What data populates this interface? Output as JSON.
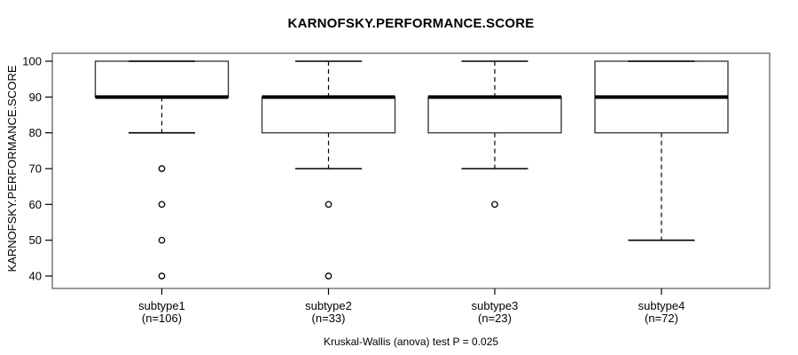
{
  "chart_data": {
    "type": "boxplot",
    "title": "KARNOFSKY.PERFORMANCE.SCORE",
    "ylabel": "KARNOFSKY.PERFORMANCE.SCORE",
    "xlabel": "",
    "ylim": [
      40,
      100
    ],
    "yticks": [
      100,
      90,
      80,
      70,
      60,
      50,
      40
    ],
    "grid": false,
    "legend_position": "none",
    "categories": [
      "subtype1",
      "subtype2",
      "subtype3",
      "subtype4"
    ],
    "category_sublabels": [
      "(n=106)",
      "(n=33)",
      "(n=23)",
      "(n=72)"
    ],
    "series": [
      {
        "name": "subtype1",
        "n": 106,
        "whisker_low": 80,
        "q1": 90,
        "median": 90,
        "q3": 100,
        "whisker_high": 100,
        "outliers": [
          70,
          60,
          50,
          40
        ]
      },
      {
        "name": "subtype2",
        "n": 33,
        "whisker_low": 70,
        "q1": 80,
        "median": 90,
        "q3": 90,
        "whisker_high": 100,
        "outliers": [
          60,
          40
        ]
      },
      {
        "name": "subtype3",
        "n": 23,
        "whisker_low": 70,
        "q1": 80,
        "median": 90,
        "q3": 90,
        "whisker_high": 100,
        "outliers": [
          60
        ]
      },
      {
        "name": "subtype4",
        "n": 72,
        "whisker_low": 50,
        "q1": 80,
        "median": 90,
        "q3": 100,
        "whisker_high": 100,
        "outliers": []
      }
    ],
    "annotation": "Kruskal-Wallis (anova) test P = 0.025"
  },
  "colors": {
    "line": "#000000",
    "box_border": "#3d3d3d",
    "frame": "#6e6e6e",
    "background": "#ffffff"
  }
}
